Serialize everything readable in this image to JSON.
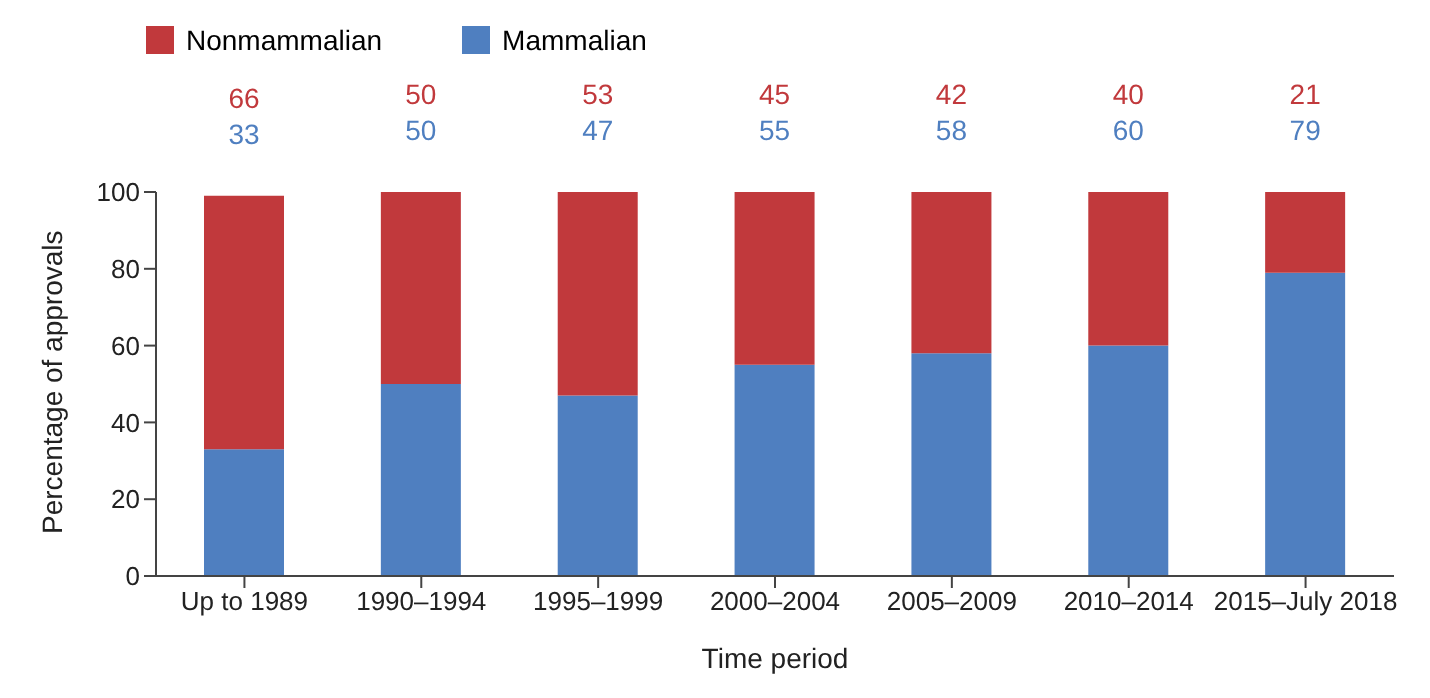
{
  "chart_data": {
    "type": "bar",
    "stacked": true,
    "xlabel": "Time period",
    "ylabel": "Percentage of approvals",
    "categories": [
      "Up to 1989",
      "1990–1994",
      "1995–1999",
      "2000–2004",
      "2005–2009",
      "2010–2014",
      "2015–July 2018"
    ],
    "series": [
      {
        "name": "Mammalian",
        "color": "#4f7fc0",
        "values": [
          33,
          50,
          47,
          55,
          58,
          60,
          79
        ]
      },
      {
        "name": "Nonmammalian",
        "color": "#c1393c",
        "values": [
          66,
          50,
          53,
          45,
          42,
          40,
          21
        ]
      }
    ],
    "ylim": [
      0,
      100
    ],
    "yticks": [
      0,
      20,
      40,
      60,
      80,
      100
    ],
    "grid": false,
    "legend": "top left",
    "data_labels": true
  }
}
